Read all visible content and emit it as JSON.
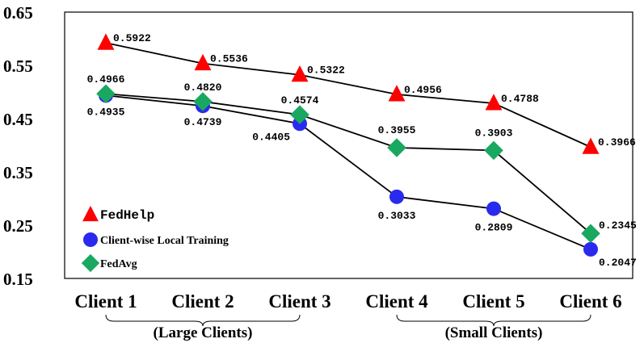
{
  "chart_data": {
    "type": "line",
    "categories": [
      "Client 1",
      "Client 2",
      "Client 3",
      "Client 4",
      "Client 5",
      "Client 6"
    ],
    "groups": [
      {
        "label": "(Large Clients)",
        "categories": [
          "Client 1",
          "Client 2",
          "Client 3"
        ]
      },
      {
        "label": "(Small Clients)",
        "categories": [
          "Client 4",
          "Client 5",
          "Client 6"
        ]
      }
    ],
    "ylim": [
      0.15,
      0.65
    ],
    "yticks": [
      "0.15",
      "0.25",
      "0.35",
      "0.45",
      "0.55",
      "0.65"
    ],
    "legend_position": "bottom-left",
    "grid": false,
    "series": [
      {
        "name": "FedHelp",
        "marker": "triangle",
        "color": "#ff0000",
        "values": [
          0.5922,
          0.5536,
          0.5322,
          0.4956,
          0.4788,
          0.3966
        ],
        "labels": [
          "0.5922",
          "0.5536",
          "0.5322",
          "0.4956",
          "0.4788",
          "0.3966"
        ]
      },
      {
        "name": "Client-wise Local Training",
        "marker": "circle",
        "color": "#2a2aee",
        "values": [
          0.4935,
          0.4739,
          0.4405,
          0.3033,
          0.2809,
          0.2047
        ],
        "labels": [
          "0.4935",
          "0.4739",
          "0.4405",
          "0.3033",
          "0.2809",
          "0.2047"
        ]
      },
      {
        "name": "FedAvg",
        "marker": "diamond",
        "color": "#1aa860",
        "values": [
          0.4966,
          0.482,
          0.4574,
          0.3955,
          0.3903,
          0.2345
        ],
        "labels": [
          "0.4966",
          "0.4820",
          "0.4574",
          "0.3955",
          "0.3903",
          "0.2345"
        ]
      }
    ]
  }
}
